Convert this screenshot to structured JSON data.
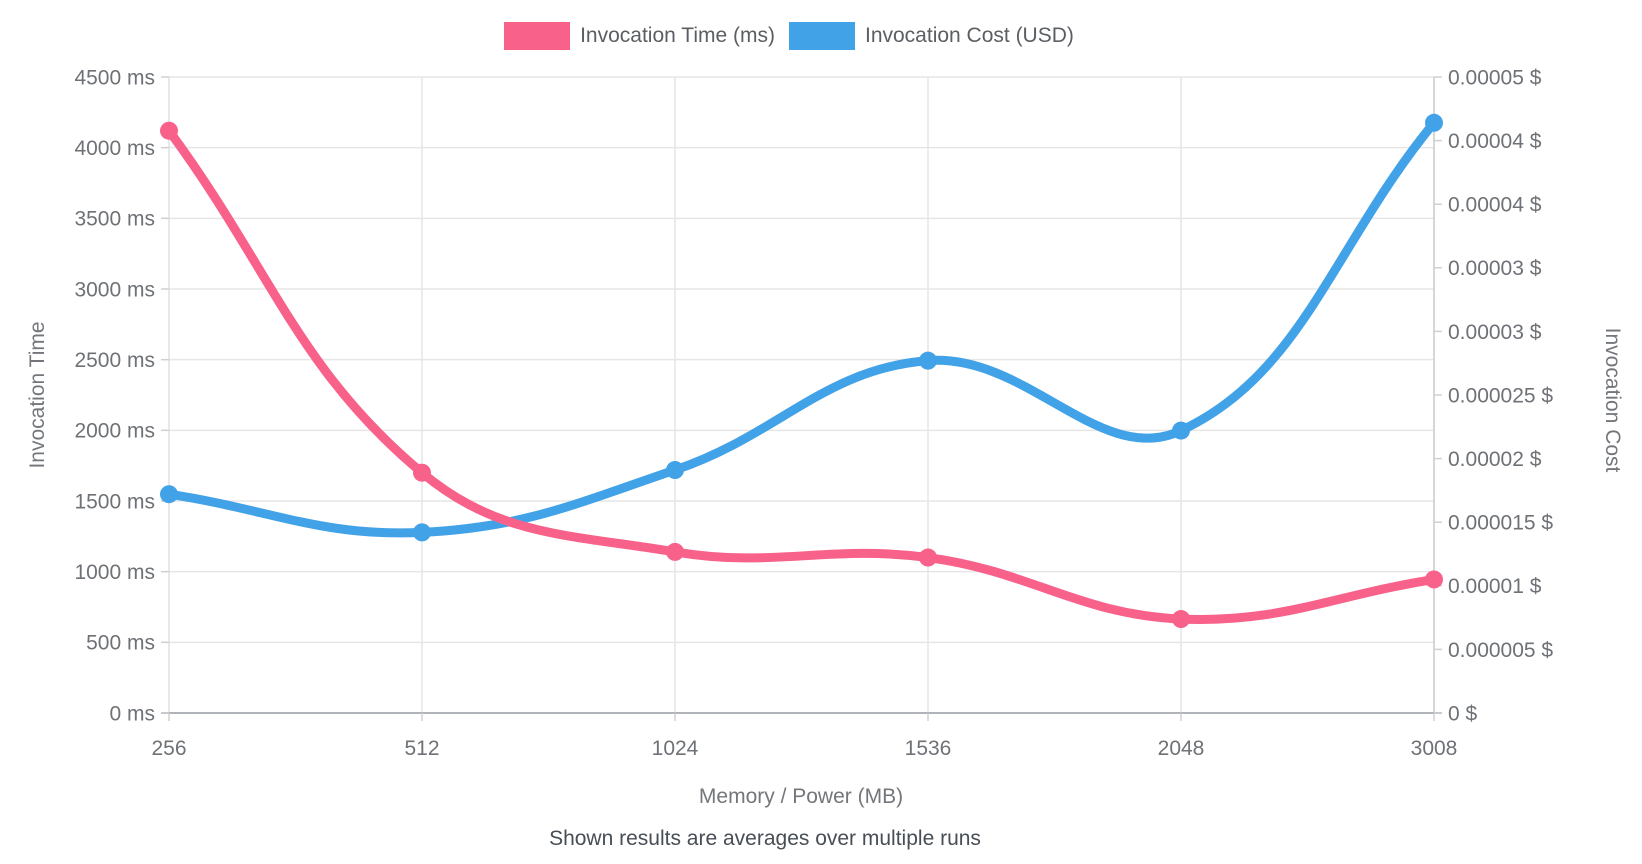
{
  "legend": {
    "items": [
      {
        "label": "Invocation Time (ms)",
        "color": "#f8618a"
      },
      {
        "label": "Invocation Cost (USD)",
        "color": "#42a2e8"
      }
    ]
  },
  "y_left": {
    "title": "Invocation Time",
    "tick_labels": [
      "4500 ms",
      "4000 ms",
      "3500 ms",
      "3000 ms",
      "2500 ms",
      "2000 ms",
      "1500 ms",
      "1000 ms",
      "500 ms",
      "0 ms"
    ]
  },
  "y_right": {
    "title": "Invocation Cost",
    "tick_labels": [
      "0.00005 $",
      "0.00004 $",
      "0.00004 $",
      "0.00003 $",
      "0.00003 $",
      "0.000025 $",
      "0.00002 $",
      "0.000015 $",
      "0.00001 $",
      "0.000005 $",
      "0 $"
    ]
  },
  "x_axis": {
    "title": "Memory / Power (MB)",
    "labels": [
      "256",
      "512",
      "1024",
      "1536",
      "2048",
      "3008"
    ]
  },
  "subtitle": "Shown results are averages over multiple runs",
  "colors": {
    "time_series": "#f8618a",
    "cost_series": "#42a2e8",
    "gridline": "#e6e6e6",
    "bottom_axis_line": "#b0b4b8",
    "right_axis_line": "#c9c9c9",
    "left_axis_line": "#e0e0e0",
    "tick_stub": "#d0d0d0",
    "tick_text": "#6e7276"
  },
  "chart_data": {
    "type": "line",
    "x_categories": [
      256,
      512,
      1024,
      1536,
      2048,
      3008
    ],
    "series": [
      {
        "name": "Invocation Time (ms)",
        "axis": "left",
        "color": "#f8618a",
        "values": [
          4120,
          1700,
          1140,
          1100,
          665,
          945
        ]
      },
      {
        "name": "Invocation Cost (USD)",
        "axis": "right",
        "color": "#42a2e8",
        "values": [
          1.72e-05,
          1.42e-05,
          1.91e-05,
          2.77e-05,
          2.22e-05,
          4.64e-05
        ]
      }
    ],
    "title": "",
    "xlabel": "Memory / Power (MB)",
    "ylabel_left": "Invocation Time",
    "ylabel_right": "Invocation Cost",
    "left_axis_range": [
      0,
      4500
    ],
    "left_axis_step": 500,
    "right_axis_range": [
      0,
      5e-05
    ],
    "right_axis_step": 5e-06,
    "grid": true,
    "smooth": true,
    "point_radius": 9,
    "line_width": 9,
    "legend_position": "top",
    "note": "Shown results are averages over multiple runs"
  }
}
